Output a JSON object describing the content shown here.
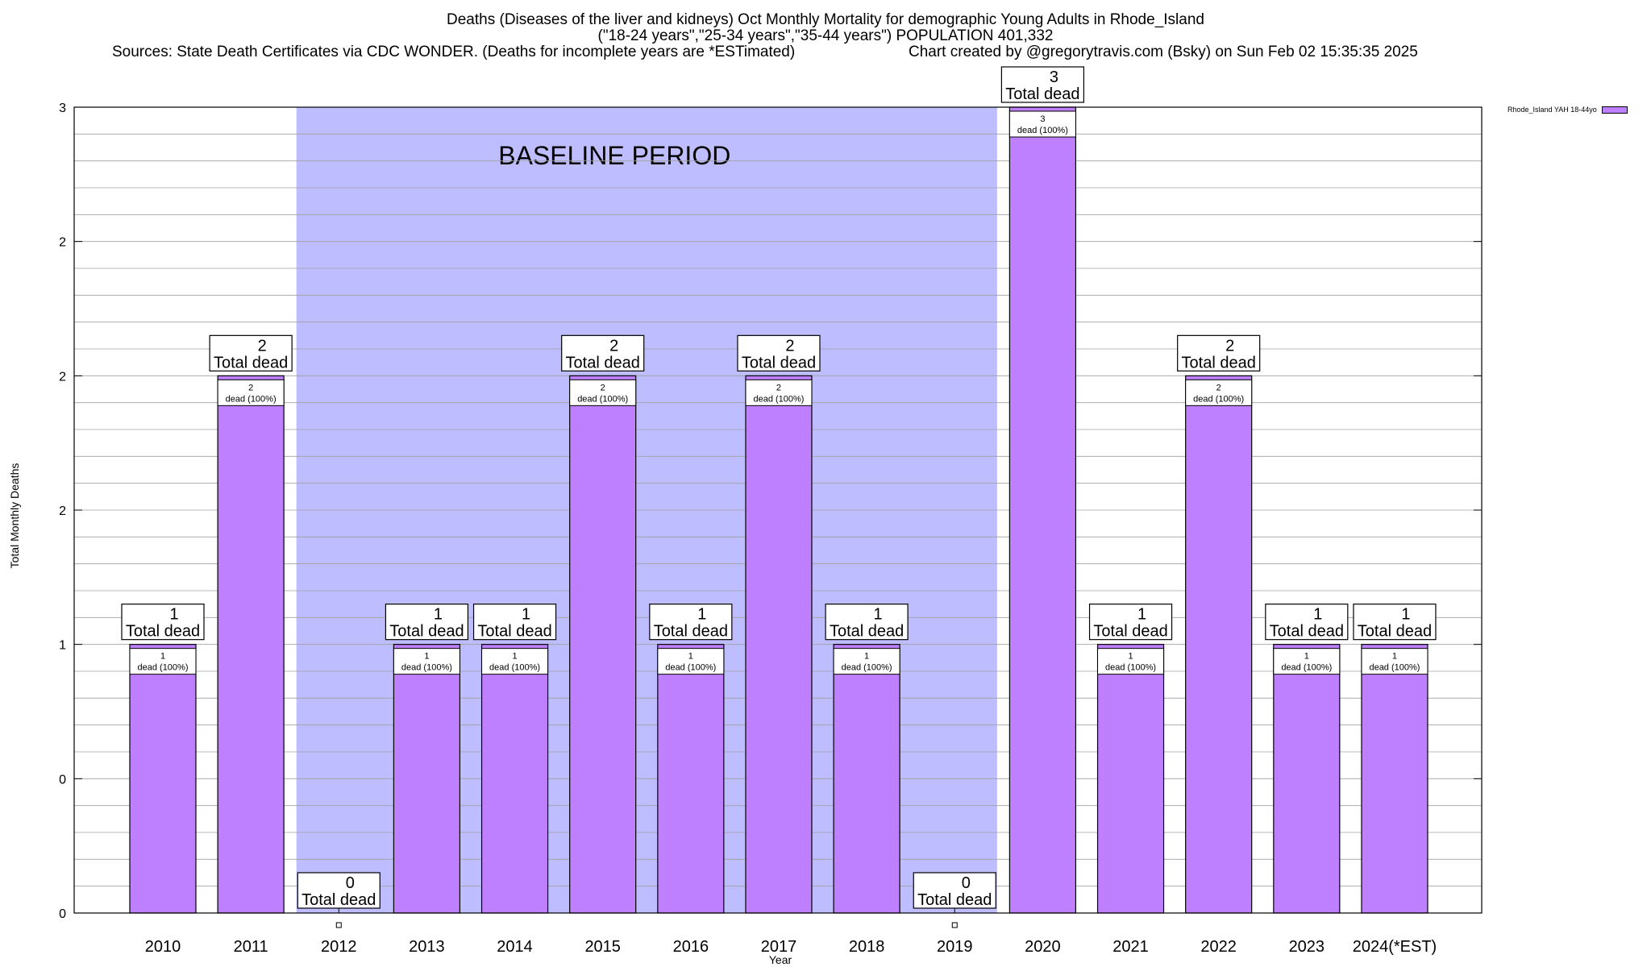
{
  "chart_data": {
    "type": "bar",
    "title_lines": [
      "Deaths (Diseases of the liver and kidneys) Oct Monthly Mortality for demographic Young Adults in Rhode_Island",
      "(\"18-24 years\",\"25-34 years\",\"35-44 years\") POPULATION 401,332",
      "Sources: State Death Certificates via CDC WONDER. (Deaths for incomplete years are *ESTimated)"
    ],
    "credit": "Chart created by @gregorytravis.com (Bsky) on Sun Feb 02 15:35:35 2025",
    "xlabel": "Year",
    "ylabel": "Total Monthly Deaths",
    "ylim": [
      0,
      3
    ],
    "ytick_values": [
      0,
      0.5,
      1,
      1.5,
      2,
      2.5,
      3
    ],
    "ytick_labels": [
      "0",
      "0",
      "1",
      "2",
      "2",
      "2",
      "3"
    ],
    "grid": true,
    "legend": {
      "label": "Rhode_Island YAH 18-44yo",
      "placement": "top-right outside"
    },
    "categories": [
      "2010",
      "2011",
      "2012",
      "2013",
      "2014",
      "2015",
      "2016",
      "2017",
      "2018",
      "2019",
      "2020",
      "2021",
      "2022",
      "2023",
      "2024(*EST)"
    ],
    "series": [
      {
        "name": "Rhode_Island YAH 18-44yo",
        "values": [
          1,
          2,
          0,
          1,
          1,
          2,
          1,
          2,
          1,
          0,
          3,
          1,
          2,
          1,
          1
        ]
      }
    ],
    "total_label_text": "Total dead",
    "segment_label_text": "dead (100%)",
    "baseline": {
      "label": "BASELINE PERIOD",
      "start": "2012",
      "end": "2019"
    },
    "colors": {
      "bar": "#bf80ff",
      "baseline": "#bdbdff",
      "grid": "#a0a0a0"
    }
  }
}
